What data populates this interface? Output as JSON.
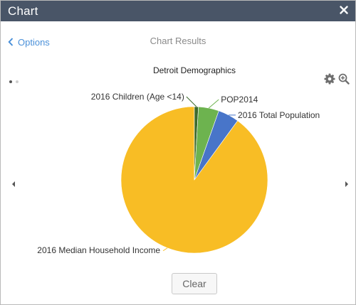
{
  "window": {
    "title": "Chart",
    "close_icon": "close-icon"
  },
  "nav": {
    "options_label": "Options",
    "results_title": "Chart Results",
    "pager": {
      "current": 1,
      "total": 2
    }
  },
  "toolbar": {
    "settings_icon": "gear-icon",
    "zoom_icon": "zoom-in-icon"
  },
  "chart_data": {
    "type": "pie",
    "title": "Detroit Demographics",
    "slices": [
      {
        "label": "2016 Median Household Income",
        "value": 91.5,
        "color": "#f8bd25"
      },
      {
        "label": "2016 Children (Age <14)",
        "value": 0.9,
        "color": "#3c6a2d"
      },
      {
        "label": "POP2014",
        "value": 4.6,
        "color": "#6db34f"
      },
      {
        "label": "2016 Total Population",
        "value": 4.7,
        "color": "#4875c9"
      }
    ]
  },
  "actions": {
    "clear_label": "Clear"
  }
}
